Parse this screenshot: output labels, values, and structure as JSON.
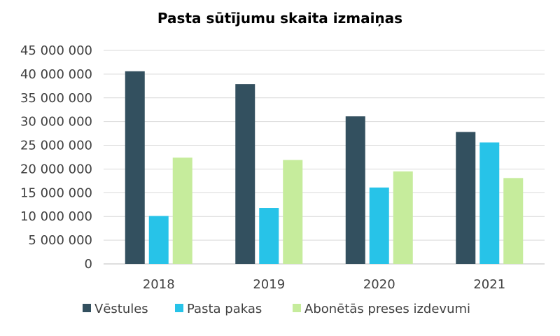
{
  "chart_data": {
    "type": "bar",
    "title": "Pasta sūtījumu skaita izmaiņas",
    "xlabel": "",
    "ylabel": "",
    "categories": [
      "2018",
      "2019",
      "2020",
      "2021"
    ],
    "series": [
      {
        "name": "Vēstules",
        "color": "#33505f",
        "values": [
          40600000,
          37900000,
          31100000,
          27800000
        ]
      },
      {
        "name": "Pasta pakas",
        "color": "#27c3e8",
        "values": [
          10100000,
          11800000,
          16100000,
          25600000
        ]
      },
      {
        "name": "Abonētās preses izdevumi",
        "color": "#c6ec9c",
        "values": [
          22400000,
          21900000,
          19500000,
          18100000
        ]
      }
    ],
    "ylim": [
      0,
      45000000
    ],
    "yticks": [
      0,
      5000000,
      10000000,
      15000000,
      20000000,
      25000000,
      30000000,
      35000000,
      40000000,
      45000000
    ],
    "ytick_labels": [
      "0",
      "5 000 000",
      "10 000 000",
      "15 000 000",
      "20 000 000",
      "25 000 000",
      "30 000 000",
      "35 000 000",
      "40 000 000",
      "45 000 000"
    ],
    "grid": true,
    "legend_position": "bottom"
  }
}
